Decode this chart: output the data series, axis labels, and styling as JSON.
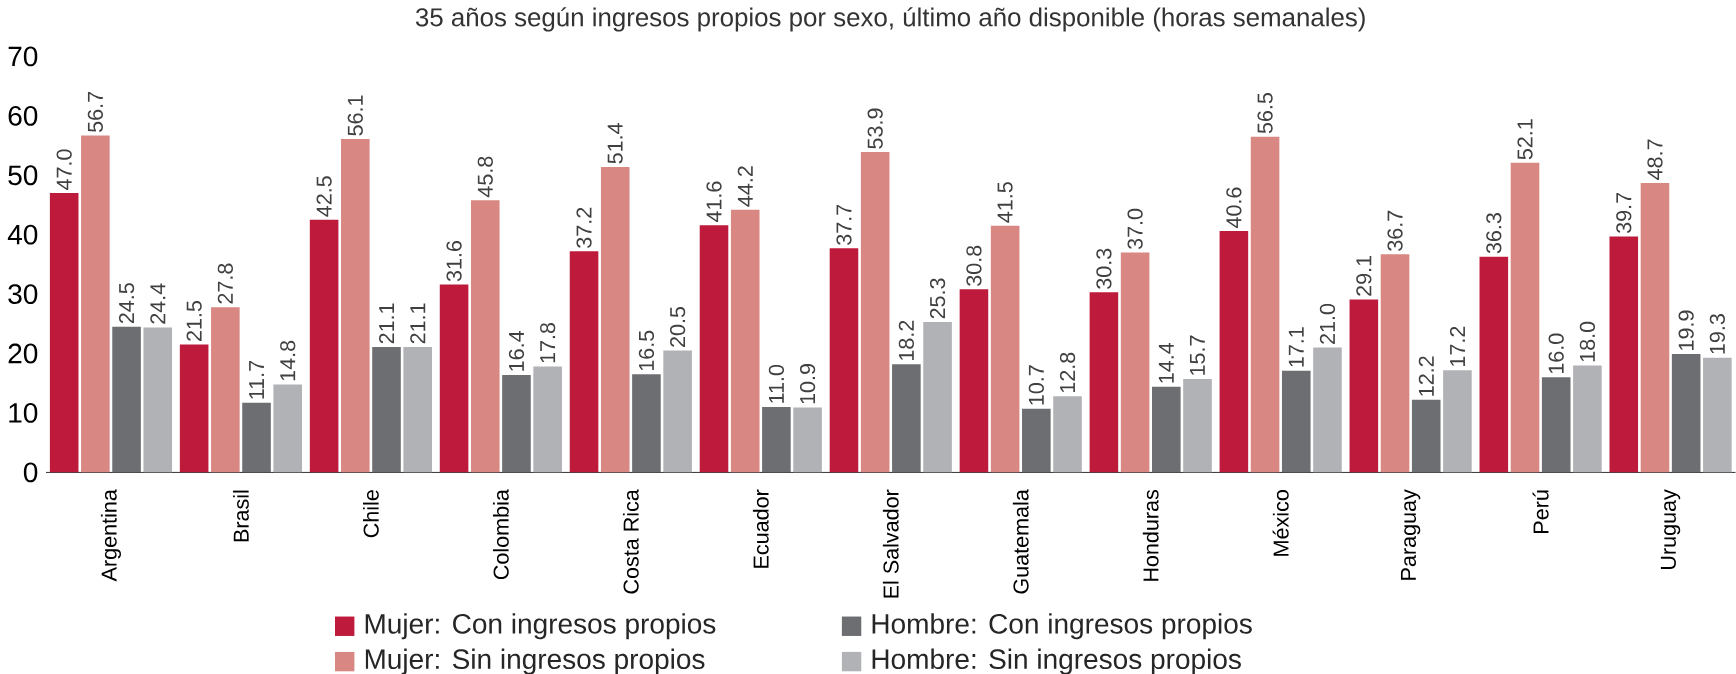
{
  "chart_data": {
    "type": "bar",
    "title": "35 años según ingresos propios por sexo, último año disponible (horas semanales)",
    "categories": [
      "Argentina",
      "Brasil",
      "Chile",
      "Colombia",
      "Costa Rica",
      "Ecuador",
      "El Salvador",
      "Guatemala",
      "Honduras",
      "México",
      "Paraguay",
      "Perú",
      "Uruguay"
    ],
    "series": [
      {
        "name": "Mujer: Con ingresos propios",
        "color": "#be1a3c",
        "values": [
          47.0,
          21.5,
          42.5,
          31.6,
          37.2,
          41.6,
          37.7,
          30.8,
          30.3,
          40.6,
          29.1,
          36.3,
          39.7
        ],
        "value_labels": [
          "47.0",
          "21.5",
          "42.5",
          "31.6",
          "37.2",
          "41.6",
          "37.7",
          "30.8",
          "30.3",
          "40.6",
          "29.1",
          "36.3",
          "39.7"
        ]
      },
      {
        "name": "Mujer: Sin ingresos propios",
        "color": "#d98782",
        "values": [
          56.7,
          27.8,
          56.1,
          45.8,
          51.4,
          44.2,
          53.9,
          41.5,
          37.0,
          56.5,
          36.7,
          52.1,
          48.7
        ],
        "value_labels": [
          "56.7",
          "27.8",
          "56.1",
          "45.8",
          "51.4",
          "44.2",
          "53.9",
          "41.5",
          "37.0",
          "56.5",
          "36.7",
          "52.1",
          "48.7"
        ]
      },
      {
        "name": "Hombre: Con ingresos propios",
        "color": "#6d6e72",
        "values": [
          24.5,
          11.7,
          21.1,
          16.4,
          16.5,
          11.0,
          18.2,
          10.7,
          14.4,
          17.1,
          12.2,
          16.0,
          19.9
        ],
        "value_labels": [
          "24.5",
          "11.7",
          "21.1",
          "16.4",
          "16.5",
          "11.0",
          "18.2",
          "10.7",
          "14.4",
          "17.1",
          "12.2",
          "16.0",
          "19.9"
        ]
      },
      {
        "name": "Hombre: Sin ingresos propios",
        "color": "#b1b2b6",
        "values": [
          24.4,
          14.8,
          21.1,
          17.8,
          20.5,
          10.9,
          25.3,
          12.8,
          15.7,
          21.0,
          17.2,
          18.0,
          19.3
        ],
        "value_labels": [
          "24.4",
          "14.8",
          "21.1",
          "17.8",
          "20.5",
          "10.9",
          "25.3",
          "12.8",
          "15.7",
          "21.0",
          "17.2",
          "18.0",
          "19.3"
        ]
      }
    ],
    "ylim": [
      0,
      70
    ],
    "yticks": [
      0,
      10,
      20,
      30,
      40,
      50,
      60,
      70
    ],
    "legend": "bottom",
    "data_labels": true
  }
}
